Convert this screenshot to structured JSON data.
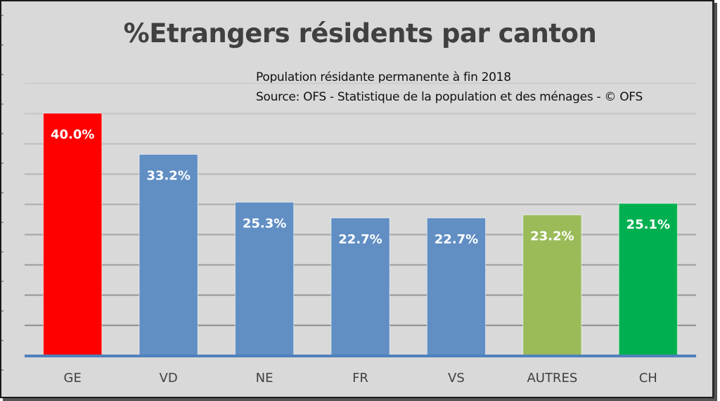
{
  "chart_data": {
    "type": "bar",
    "title": "%Etrangers résidents par canton",
    "subtitle_lines": [
      "Population résidante permanente à fin 2018",
      "Source: OFS - Statistique de la population et des ménages - © OFS"
    ],
    "categories": [
      "GE",
      "VD",
      "NE",
      "FR",
      "VS",
      "AUTRES",
      "CH"
    ],
    "values": [
      40.0,
      33.2,
      25.3,
      22.7,
      22.7,
      23.2,
      25.1
    ],
    "value_labels": [
      "40.0%",
      "33.2%",
      "25.3%",
      "22.7%",
      "22.7%",
      "23.2%",
      "25.1%"
    ],
    "colors": [
      "#ff0000",
      "#618fc4",
      "#618fc4",
      "#618fc4",
      "#618fc4",
      "#9bbb59",
      "#00b050"
    ],
    "xlabel": "",
    "ylabel": "",
    "ylim": [
      0,
      45
    ],
    "ytick_step": 5,
    "yaxis_labels_visible": false,
    "grid": true,
    "legend": "none",
    "axis_color": "#4f81bd"
  }
}
